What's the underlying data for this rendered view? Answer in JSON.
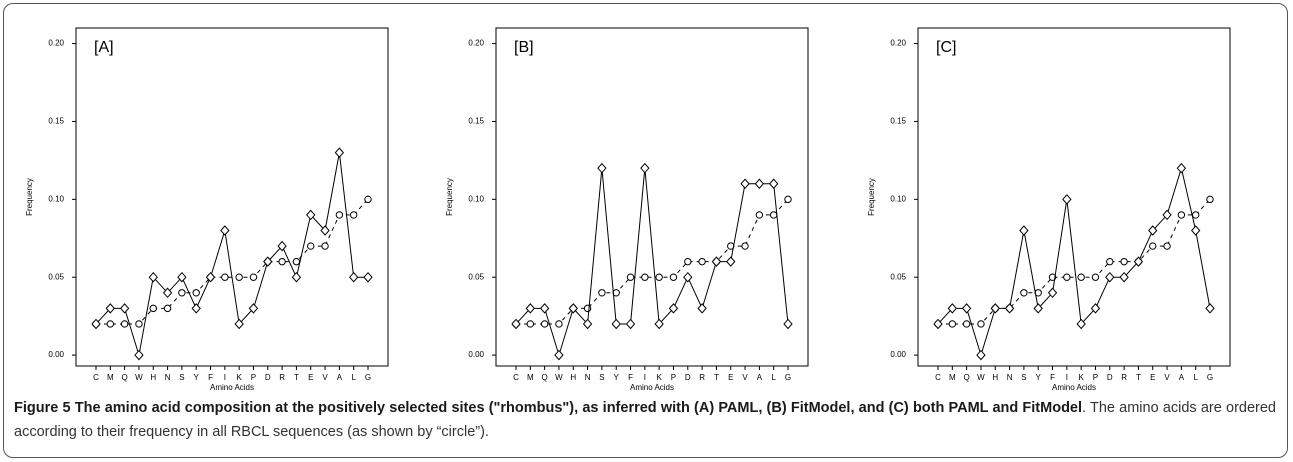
{
  "chart_data": [
    {
      "type": "line",
      "title": "[A]",
      "xlabel": "Amino Acids",
      "ylabel": "Frequency",
      "categories": [
        "C",
        "M",
        "Q",
        "W",
        "H",
        "N",
        "S",
        "Y",
        "F",
        "I",
        "K",
        "P",
        "D",
        "R",
        "T",
        "E",
        "V",
        "A",
        "L",
        "G"
      ],
      "series": [
        {
          "color": "#000000",
          "marker": "circle",
          "dashed": true,
          "values": [
            0.02,
            0.02,
            0.02,
            0.02,
            0.03,
            0.03,
            0.04,
            0.04,
            0.05,
            0.05,
            0.05,
            0.05,
            0.06,
            0.06,
            0.06,
            0.07,
            0.07,
            0.09,
            0.09,
            0.1
          ]
        },
        {
          "color": "#000000",
          "marker": "diamond",
          "dashed": false,
          "values": [
            0.02,
            0.03,
            0.03,
            0.0,
            0.05,
            0.04,
            0.05,
            0.03,
            0.05,
            0.08,
            0.02,
            0.03,
            0.06,
            0.07,
            0.05,
            0.09,
            0.08,
            0.13,
            0.05,
            0.05
          ]
        }
      ],
      "ylim": [
        -0.007,
        0.21
      ],
      "yticks": [
        {
          "value": 0,
          "label": "0.00"
        },
        {
          "value": 0.05,
          "label": "0.05"
        },
        {
          "value": 0.1,
          "label": "0.10"
        },
        {
          "value": 0.15,
          "label": "0.15"
        },
        {
          "value": 0.2,
          "label": "0.20"
        }
      ]
    },
    {
      "type": "line",
      "title": "[B]",
      "xlabel": "Amino Acids",
      "ylabel": "Frequency",
      "categories": [
        "C",
        "M",
        "Q",
        "W",
        "H",
        "N",
        "S",
        "Y",
        "F",
        "I",
        "K",
        "P",
        "D",
        "R",
        "T",
        "E",
        "V",
        "A",
        "L",
        "G"
      ],
      "series": [
        {
          "color": "#000000",
          "marker": "circle",
          "dashed": true,
          "values": [
            0.02,
            0.02,
            0.02,
            0.02,
            0.03,
            0.03,
            0.04,
            0.04,
            0.05,
            0.05,
            0.05,
            0.05,
            0.06,
            0.06,
            0.06,
            0.07,
            0.07,
            0.09,
            0.09,
            0.1
          ]
        },
        {
          "color": "#000000",
          "marker": "diamond",
          "dashed": false,
          "values": [
            0.02,
            0.03,
            0.03,
            0.0,
            0.03,
            0.02,
            0.12,
            0.02,
            0.02,
            0.12,
            0.02,
            0.03,
            0.05,
            0.03,
            0.06,
            0.06,
            0.11,
            0.11,
            0.11,
            0.02
          ]
        }
      ],
      "ylim": [
        -0.007,
        0.21
      ],
      "yticks": [
        {
          "value": 0,
          "label": "0.00"
        },
        {
          "value": 0.05,
          "label": "0.05"
        },
        {
          "value": 0.1,
          "label": "0.10"
        },
        {
          "value": 0.15,
          "label": "0.15"
        },
        {
          "value": 0.2,
          "label": "0.20"
        }
      ]
    },
    {
      "type": "line",
      "title": "[C]",
      "xlabel": "Amino Acids",
      "ylabel": "Frequency",
      "categories": [
        "C",
        "M",
        "Q",
        "W",
        "H",
        "N",
        "S",
        "Y",
        "F",
        "I",
        "K",
        "P",
        "D",
        "R",
        "T",
        "E",
        "V",
        "A",
        "L",
        "G"
      ],
      "series": [
        {
          "color": "#000000",
          "marker": "circle",
          "dashed": true,
          "values": [
            0.02,
            0.02,
            0.02,
            0.02,
            0.03,
            0.03,
            0.04,
            0.04,
            0.05,
            0.05,
            0.05,
            0.05,
            0.06,
            0.06,
            0.06,
            0.07,
            0.07,
            0.09,
            0.09,
            0.1
          ]
        },
        {
          "color": "#000000",
          "marker": "diamond",
          "dashed": false,
          "values": [
            0.02,
            0.03,
            0.03,
            0.0,
            0.03,
            0.03,
            0.08,
            0.03,
            0.04,
            0.1,
            0.02,
            0.03,
            0.05,
            0.05,
            0.06,
            0.08,
            0.09,
            0.12,
            0.08,
            0.03
          ]
        }
      ],
      "ylim": [
        -0.007,
        0.21
      ],
      "yticks": [
        {
          "value": 0,
          "label": "0.00"
        },
        {
          "value": 0.05,
          "label": "0.05"
        },
        {
          "value": 0.1,
          "label": "0.10"
        },
        {
          "value": 0.15,
          "label": "0.15"
        },
        {
          "value": 0.2,
          "label": "0.20"
        }
      ]
    }
  ],
  "caption": {
    "bold": "Figure 5 The amino acid composition at the positively selected sites (\"rhombus\"), as inferred with (A) PAML, (B) FitModel, and (C) both PAML and FitModel",
    "text": ". The amino acids are ordered according to their frequency in all RBCL sequences (as shown by “circle”)."
  }
}
